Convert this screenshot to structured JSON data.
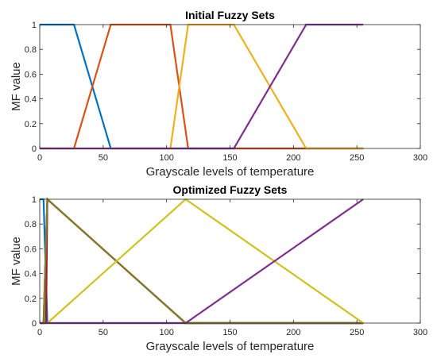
{
  "chart_data": [
    {
      "type": "line",
      "title": "Initial Fuzzy Sets",
      "xlabel": "Grayscale levels of temperature",
      "ylabel": "MF value",
      "xlim": [
        0,
        300
      ],
      "ylim": [
        0,
        1
      ],
      "xticks": [
        0,
        50,
        100,
        150,
        200,
        250,
        300
      ],
      "yticks": [
        0,
        0.2,
        0.4,
        0.6,
        0.8,
        1
      ],
      "xtick_labels": [
        "0",
        "50",
        "100",
        "150",
        "200",
        "250",
        "300"
      ],
      "ytick_labels": [
        "0",
        "0.2",
        "0.4",
        "0.6",
        "0.8",
        "1"
      ],
      "grid": false,
      "series": [
        {
          "color": "#0072bd",
          "x": [
            0,
            27,
            56,
            255
          ],
          "y": [
            1,
            1,
            0,
            0
          ]
        },
        {
          "color": "#d95319",
          "x": [
            0,
            27,
            56,
            103,
            117,
            255
          ],
          "y": [
            0,
            0,
            1,
            1,
            0,
            0
          ]
        },
        {
          "color": "#edb120",
          "x": [
            0,
            103,
            117,
            153,
            210,
            255
          ],
          "y": [
            0,
            0,
            1,
            1,
            0,
            0
          ]
        },
        {
          "color": "#7e2f8e",
          "x": [
            0,
            153,
            210,
            255
          ],
          "y": [
            0,
            0,
            1,
            1
          ]
        }
      ]
    },
    {
      "type": "line",
      "title": "Optimized Fuzzy Sets",
      "xlabel": "Grayscale levels of temperature",
      "ylabel": "MF value",
      "xlim": [
        0,
        300
      ],
      "ylim": [
        0,
        1
      ],
      "xticks": [
        0,
        50,
        100,
        150,
        200,
        250,
        300
      ],
      "yticks": [
        0,
        0.2,
        0.4,
        0.6,
        0.8,
        1
      ],
      "xtick_labels": [
        "0",
        "50",
        "100",
        "150",
        "200",
        "250",
        "300"
      ],
      "ytick_labels": [
        "0",
        "0.2",
        "0.4",
        "0.6",
        "0.8",
        "1"
      ],
      "grid": false,
      "series": [
        {
          "color": "#0072bd",
          "x": [
            0,
            3,
            6,
            255
          ],
          "y": [
            1,
            1,
            0,
            0
          ]
        },
        {
          "color": "#d95319",
          "x": [
            0,
            3,
            6,
            115,
            255
          ],
          "y": [
            0,
            0,
            1,
            0,
            0
          ]
        },
        {
          "color": "#ff00ff",
          "x": [
            0,
            3,
            6,
            115,
            255
          ],
          "y": [
            0,
            0,
            1,
            0,
            0
          ]
        },
        {
          "color": "#77ac30",
          "x": [
            0,
            4,
            6,
            115,
            255
          ],
          "y": [
            0,
            0,
            1,
            0,
            0
          ]
        },
        {
          "color": "#a2142f",
          "x": [
            0,
            5,
            6,
            115,
            255
          ],
          "y": [
            0,
            0,
            1,
            0,
            0
          ]
        },
        {
          "color": "#807d28",
          "x": [
            0,
            3,
            6,
            115,
            255
          ],
          "y": [
            0,
            0,
            1,
            0,
            0
          ]
        },
        {
          "color": "#cdc21e",
          "x": [
            0,
            6,
            115,
            255
          ],
          "y": [
            0,
            0,
            1,
            0
          ]
        },
        {
          "color": "#7e2f8e",
          "x": [
            0,
            115,
            255
          ],
          "y": [
            0,
            0,
            1
          ]
        }
      ]
    }
  ]
}
